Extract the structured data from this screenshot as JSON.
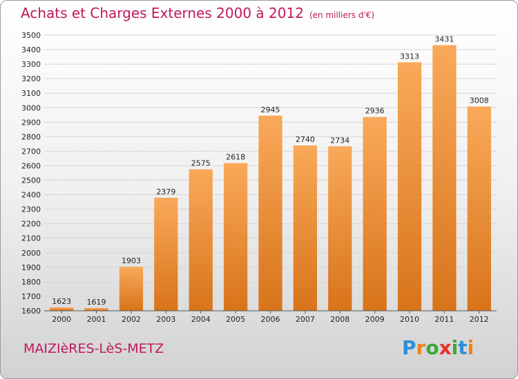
{
  "title": "Achats et Charges Externes 2000 à 2012",
  "unit": "(en milliers d'€)",
  "town": "MAIZIèRES-LèS-METZ",
  "logo": "Proxiti",
  "colors": {
    "title": "#c0185b",
    "bar_light": "#f7a553",
    "bar_dark": "#d9761b",
    "grid": "#d6d6d6"
  },
  "chart_data": {
    "type": "bar",
    "categories": [
      "2000",
      "2001",
      "2002",
      "2003",
      "2004",
      "2005",
      "2006",
      "2007",
      "2008",
      "2009",
      "2010",
      "2011",
      "2012"
    ],
    "values": [
      1623,
      1619,
      1903,
      2379,
      2575,
      2618,
      2945,
      2740,
      2734,
      2936,
      3313,
      3431,
      3008
    ],
    "ylim": [
      1600,
      3500
    ],
    "yticks": [
      1600,
      1700,
      1800,
      1900,
      2000,
      2100,
      2200,
      2300,
      2400,
      2500,
      2600,
      2700,
      2800,
      2900,
      3000,
      3100,
      3200,
      3300,
      3400,
      3500
    ],
    "grid": true,
    "data_labels": true
  }
}
